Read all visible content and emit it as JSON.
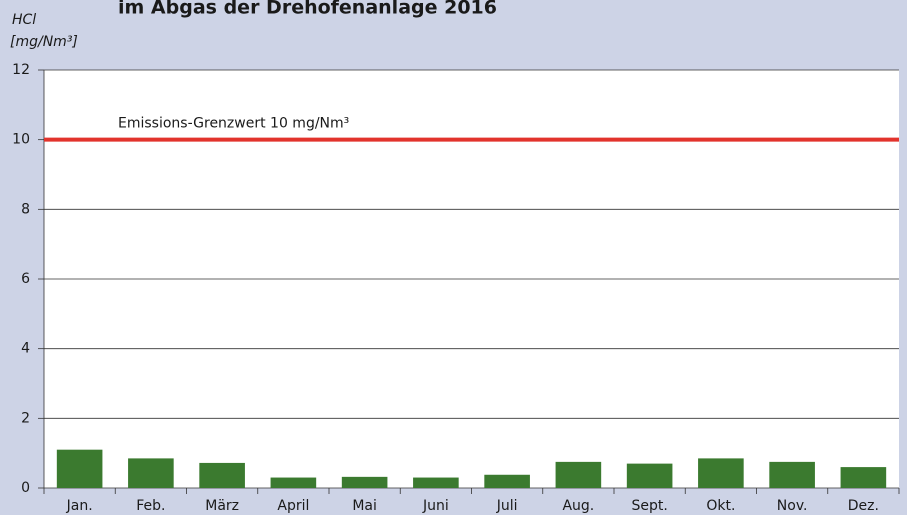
{
  "chart_data": {
    "type": "bar",
    "title": "im Abgas der Drehofenanlage 2016",
    "ylabel": "HCl",
    "yunit": "[mg/Nm³]",
    "categories": [
      "Jan.",
      "Feb.",
      "März",
      "April",
      "Mai",
      "Juni",
      "Juli",
      "Aug.",
      "Sept.",
      "Okt.",
      "Nov.",
      "Dez."
    ],
    "values": [
      1.1,
      0.85,
      0.72,
      0.3,
      0.32,
      0.3,
      0.38,
      0.75,
      0.7,
      0.85,
      0.75,
      0.6
    ],
    "color": "#3b7a2f",
    "ylim": [
      0,
      12
    ],
    "yticks": [
      0,
      2,
      4,
      6,
      8,
      10,
      12
    ],
    "grid": true,
    "threshold": {
      "value": 10,
      "label": "Emissions-Grenzwert 10 mg/Nm³",
      "color": "#e2332c"
    }
  }
}
